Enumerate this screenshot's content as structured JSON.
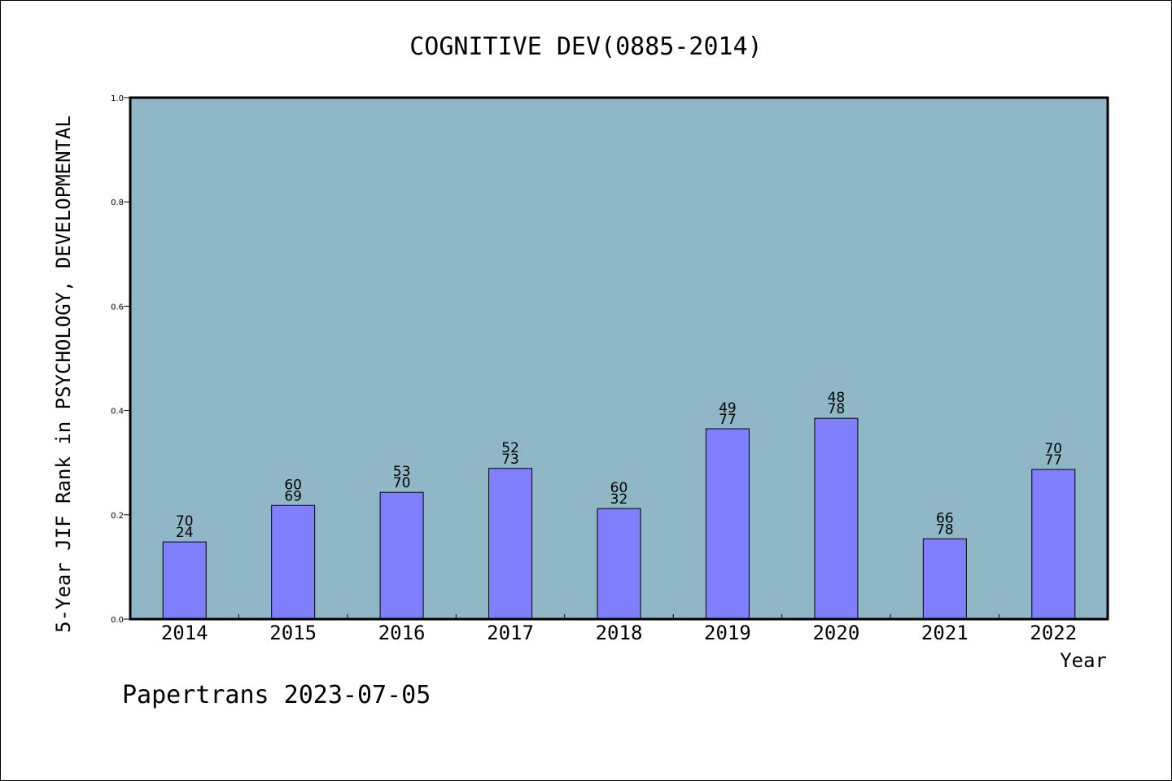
{
  "chart_data": {
    "type": "bar",
    "title": "COGNITIVE DEV(0885-2014)",
    "xlabel": "Year",
    "ylabel": "5-Year JIF Rank in PSYCHOLOGY, DEVELOPMENTAL",
    "ylim": [
      0,
      1.0
    ],
    "yticks": [
      "0.0",
      "0.2",
      "0.4",
      "0.6",
      "0.8",
      "1.0"
    ],
    "categories": [
      "2014",
      "2015",
      "2016",
      "2017",
      "2018",
      "2019",
      "2020",
      "2021",
      "2022"
    ],
    "values": [
      0.148,
      0.218,
      0.243,
      0.289,
      0.212,
      0.365,
      0.385,
      0.154,
      0.287
    ],
    "rank": [
      "70",
      "60",
      "53",
      "52",
      "60",
      "49",
      "48",
      "66",
      "70"
    ],
    "total": [
      "24",
      "69",
      "70",
      "73",
      "32",
      "77",
      "78",
      "78",
      "77"
    ],
    "grid": false,
    "colors": {
      "plot_bg": "#8fb7c5",
      "bar": "#8080ff"
    }
  },
  "footer": "Papertrans 2023-07-05"
}
